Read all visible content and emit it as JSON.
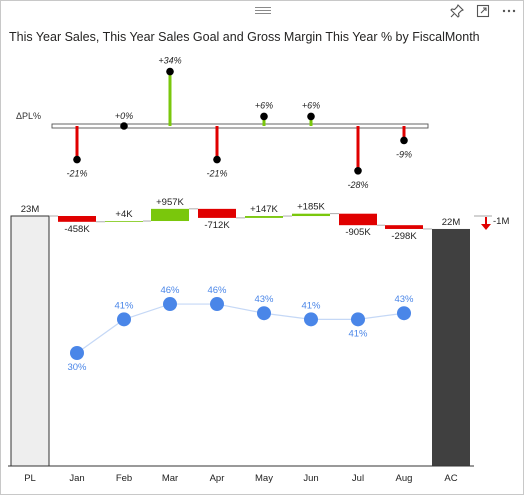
{
  "header": {
    "title": "This Year Sales, This Year Sales Goal and Gross Margin This Year % by FiscalMonth",
    "icons": [
      "pin-icon",
      "focus-mode-icon",
      "more-options-icon"
    ]
  },
  "chart_data": [
    {
      "type": "bar",
      "name": "delta-percent",
      "row_label": "ΔPL%",
      "categories": [
        "Jan",
        "Feb",
        "Mar",
        "Apr",
        "May",
        "Jun",
        "Jul",
        "Aug"
      ],
      "values": [
        -21,
        0,
        34,
        -21,
        6,
        6,
        -28,
        -9
      ],
      "labels": [
        "-21%",
        "+0%",
        "+34%",
        "-21%",
        "+6%",
        "+6%",
        "-28%",
        "-9%"
      ],
      "colors": {
        "positive": "#7ac70c",
        "negative": "#e00000",
        "zero": "#000000"
      }
    },
    {
      "type": "waterfall",
      "name": "sales-variance",
      "categories": [
        "PL",
        "Jan",
        "Feb",
        "Mar",
        "Apr",
        "May",
        "Jun",
        "Jul",
        "Aug",
        "AC"
      ],
      "start": {
        "label": "PL",
        "value": 23,
        "display": "23M"
      },
      "end": {
        "label": "AC",
        "value": 22,
        "display": "22M"
      },
      "deltas": [
        -458,
        4,
        957,
        -712,
        147,
        185,
        -905,
        -298
      ],
      "delta_labels": [
        "-458K",
        "+4K",
        "+957K",
        "-712K",
        "+147K",
        "+185K",
        "-905K",
        "-298K"
      ],
      "total_delta": {
        "display": "-1M",
        "direction": "down"
      },
      "colors": {
        "positive": "#7ac70c",
        "negative": "#e00000",
        "start": "#eeeeee",
        "end": "#404040"
      }
    },
    {
      "type": "line",
      "name": "gross-margin-percent",
      "categories": [
        "Jan",
        "Feb",
        "Mar",
        "Apr",
        "May",
        "Jun",
        "Jul",
        "Aug"
      ],
      "values": [
        30,
        41,
        46,
        46,
        43,
        41,
        41,
        43
      ],
      "labels": [
        "30%",
        "41%",
        "46%",
        "46%",
        "43%",
        "41%",
        "41%",
        "43%"
      ],
      "color": "#4a86e8"
    }
  ]
}
